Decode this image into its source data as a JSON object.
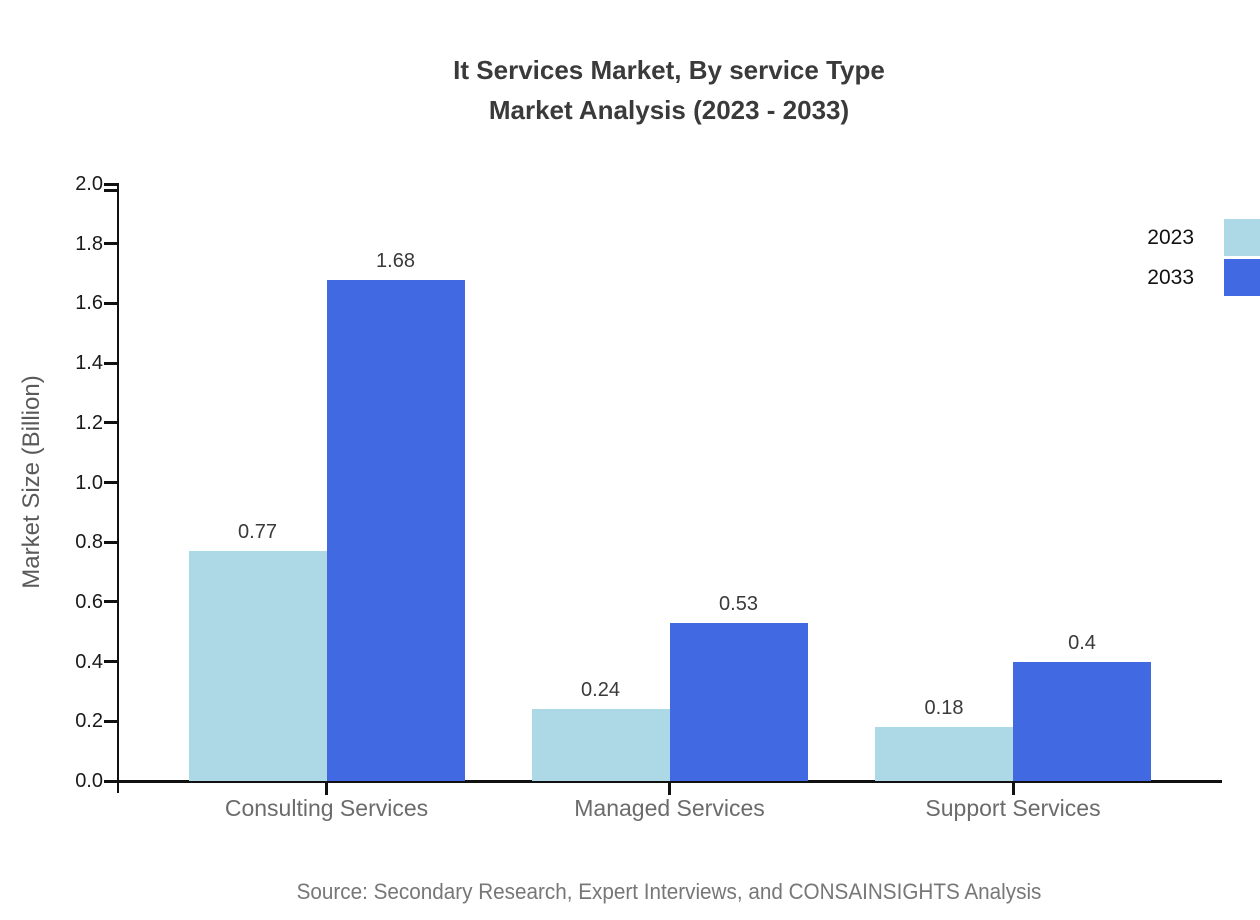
{
  "title": {
    "line1": "It Services Market, By service Type",
    "line2": "Market Analysis (2023 - 2033)"
  },
  "source": "Source: Secondary Research, Expert Interviews, and CONSAINSIGHTS Analysis",
  "chart_data": {
    "type": "bar",
    "title": "It Services Market, By service Type — Market Analysis (2023 - 2033)",
    "categories": [
      "Consulting Services",
      "Managed Services",
      "Support Services"
    ],
    "series": [
      {
        "name": "2023",
        "color": "#ADD8E6",
        "values": [
          0.77,
          0.24,
          0.18
        ]
      },
      {
        "name": "2033",
        "color": "#4169E1",
        "values": [
          1.68,
          0.53,
          0.4
        ]
      }
    ],
    "value_labels": [
      [
        "0.77",
        "0.24",
        "0.18"
      ],
      [
        "1.68",
        "0.53",
        "0.4"
      ]
    ],
    "xlabel": "",
    "ylabel": "Market Size (Billion)",
    "ylim": [
      0,
      2.0
    ],
    "ytick_step": 0.2,
    "ytick_labels": [
      "0.0",
      "0.2",
      "0.4",
      "0.6",
      "0.8",
      "1.0",
      "1.2",
      "1.4",
      "1.6",
      "1.8",
      "2.0"
    ],
    "grid": false,
    "legend_position": "upper-right"
  }
}
